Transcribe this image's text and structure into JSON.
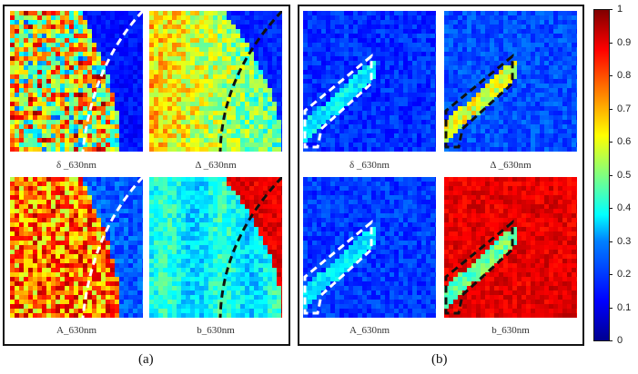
{
  "panels": [
    {
      "letter": "(a)",
      "tiles": [
        {
          "label": "δ _630nm",
          "scheme": "a_delta"
        },
        {
          "label": "Δ _630nm",
          "scheme": "a_Delta"
        },
        {
          "label": "A_630nm",
          "scheme": "a_A"
        },
        {
          "label": "b_630nm",
          "scheme": "a_b"
        }
      ]
    },
    {
      "letter": "(b)",
      "tiles": [
        {
          "label": "δ _630nm",
          "scheme": "b_delta"
        },
        {
          "label": "Δ _630nm",
          "scheme": "b_Delta"
        },
        {
          "label": "A_630nm",
          "scheme": "b_A"
        },
        {
          "label": "b_630nm",
          "scheme": "b_b"
        }
      ]
    }
  ],
  "colorbar": {
    "ticks": [
      "1",
      "0.9",
      "0.8",
      "0.7",
      "0.6",
      "0.5",
      "0.4",
      "0.3",
      "0.2",
      "0.1",
      "0"
    ],
    "colormap": "jet"
  }
}
